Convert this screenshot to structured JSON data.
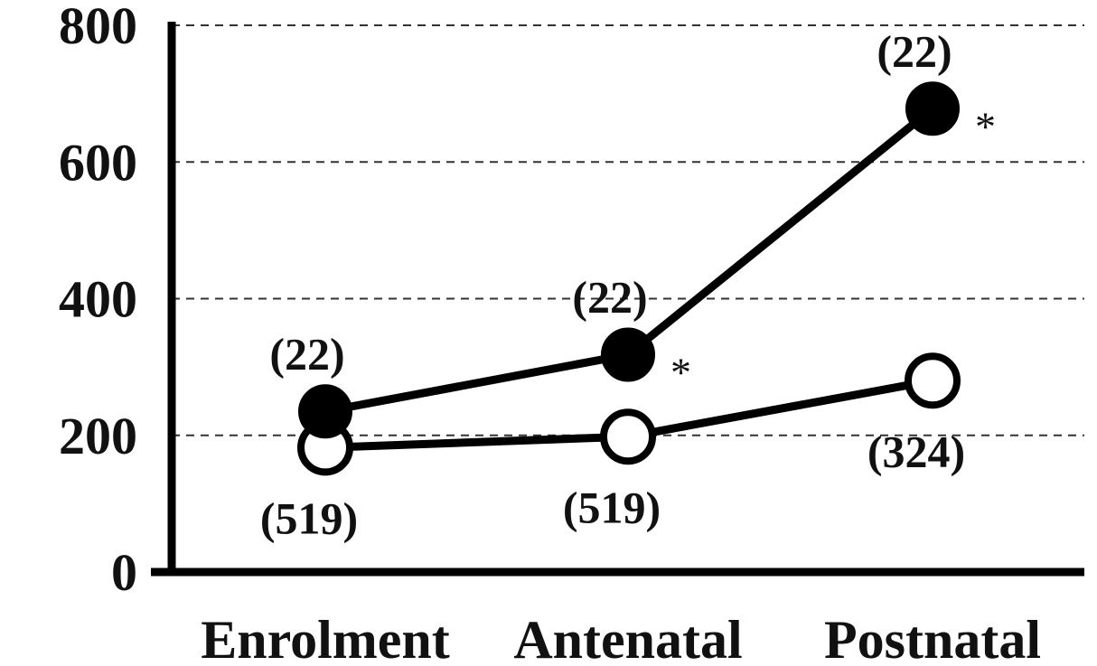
{
  "chart_data": {
    "type": "line",
    "categories": [
      "Enrolment",
      "Antenatal",
      "Postnatal"
    ],
    "ylim": [
      0,
      800
    ],
    "yticks": [
      0,
      200,
      400,
      600,
      800
    ],
    "grid": "horizontal-dashed",
    "series": [
      {
        "marker": "filled-circle",
        "color": "#000000",
        "values": [
          235,
          318,
          678
        ],
        "n_labels": [
          "(22)",
          "(22)",
          "(22)"
        ],
        "significance": [
          "",
          "*",
          "*"
        ]
      },
      {
        "marker": "open-circle",
        "color": "#000000",
        "values": [
          182,
          198,
          280
        ],
        "n_labels": [
          "(519)",
          "(519)",
          "(324)"
        ],
        "significance": [
          "",
          "",
          ""
        ]
      }
    ]
  }
}
